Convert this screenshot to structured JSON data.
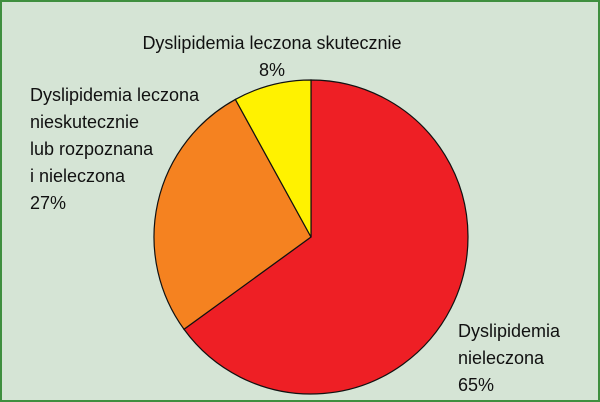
{
  "chart_data": {
    "type": "pie",
    "categories": [
      "Dyslipidemia\nnieleczona",
      "Dyslipidemia leczona\nnieskutecznie\nlub rozpoznana\ni nieleczona",
      "Dyslipidemia leczona skutecznie"
    ],
    "values": [
      65,
      27,
      8
    ],
    "value_labels": [
      "65%",
      "27%",
      "8%"
    ],
    "colors": [
      "#ee1f25",
      "#f58220",
      "#fff200"
    ]
  }
}
